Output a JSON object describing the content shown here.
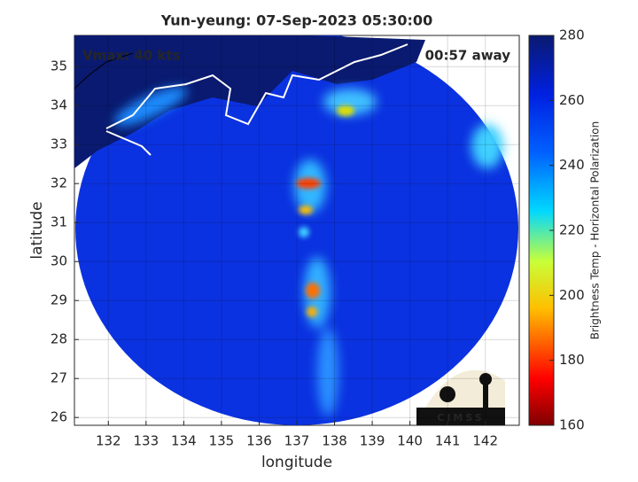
{
  "title": "Yun-yeung: 07-Sep-2023 05:30:00",
  "annotations": {
    "vmax": "Vmax: 40 kts",
    "eta": "00:57 away"
  },
  "axes": {
    "xlabel": "longitude",
    "ylabel": "latitude",
    "xlim": [
      131.1,
      142.9
    ],
    "ylim": [
      25.8,
      35.8
    ],
    "xticks": [
      132,
      133,
      134,
      135,
      136,
      137,
      138,
      139,
      140,
      141,
      142
    ],
    "yticks": [
      26,
      27,
      28,
      29,
      30,
      31,
      32,
      33,
      34,
      35
    ],
    "grid": true
  },
  "colorbar": {
    "label": "Brightness Temp - Horizontal Polarization",
    "lim": [
      160,
      280
    ],
    "ticks": [
      160,
      180,
      200,
      220,
      240,
      260,
      280
    ]
  },
  "logo": "CIMSS"
}
